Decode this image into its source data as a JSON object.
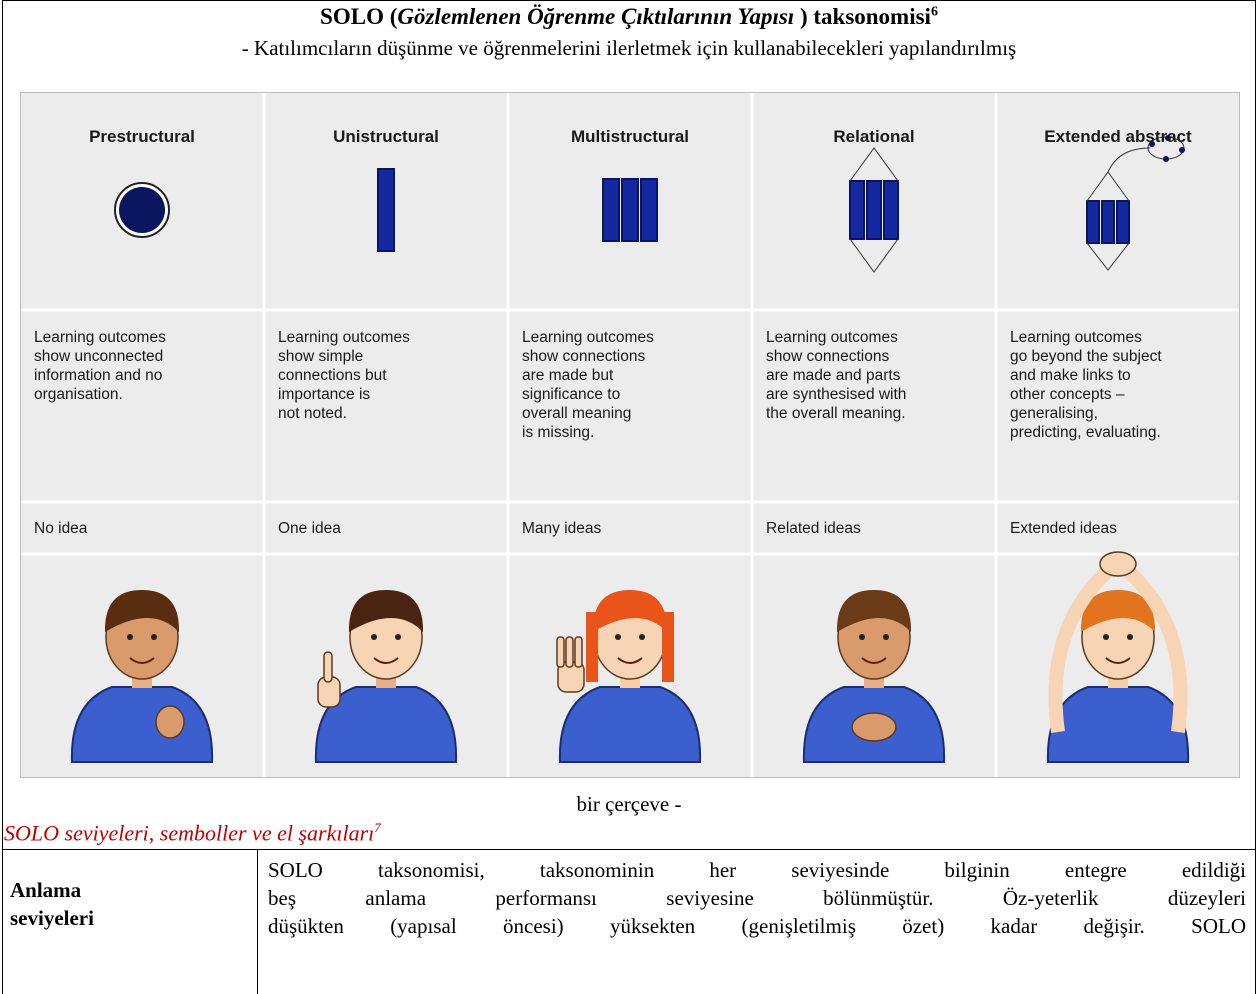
{
  "header": {
    "title_bold_1": "SOLO (",
    "title_italic": "Gözlemlenen Öğrenme Çıktılarının Yapısı",
    "title_bold_2": " ) taksonomisi",
    "title_footnote": "6",
    "subtitle": "- Katılımcıların düşünme ve öğrenmelerini ilerletmek için kullanabilecekleri yapılandırılmış"
  },
  "figure": {
    "columns": [
      {
        "level": "Prestructural",
        "description": [
          "Learning outcomes",
          "show unconnected",
          "information and no",
          "organisation."
        ],
        "idea": "No idea"
      },
      {
        "level": "Unistructural",
        "description": [
          "Learning outcomes",
          "show simple",
          "connections but",
          "importance is",
          "not noted."
        ],
        "idea": "One idea"
      },
      {
        "level": "Multistructural",
        "description": [
          "Learning outcomes",
          "show connections",
          "are made but",
          "significance to",
          "overall meaning",
          "is missing."
        ],
        "idea": "Many ideas"
      },
      {
        "level": "Relational",
        "description": [
          "Learning outcomes",
          "show connections",
          "are made and parts",
          "are synthesised with",
          "the overall meaning."
        ],
        "idea": "Related ideas"
      },
      {
        "level": "Extended abstract",
        "description": [
          "Learning outcomes",
          "go beyond the subject",
          "and make links to",
          "other concepts –",
          "generalising,",
          "predicting, evaluating."
        ],
        "idea": "Extended ideas"
      }
    ]
  },
  "continuation": "bir çerçeve -",
  "caption": {
    "text": "SOLO seviyeleri, semboller ve el şarkıları",
    "footnote": "7"
  },
  "table": {
    "rows": [
      {
        "label": "Anlama seviyeleri",
        "text_lines": [
          "SOLO taksonomisi, taksonominin her seviyesinde bilginin entegre edildiği",
          "beş anlama performansı seviyesine bölünmüştür. Öz-yeterlik düzeyleri",
          "düşükten (yapısal öncesi) yüksekten (genişletilmiş özet) kadar değişir. SOLO"
        ]
      }
    ]
  }
}
